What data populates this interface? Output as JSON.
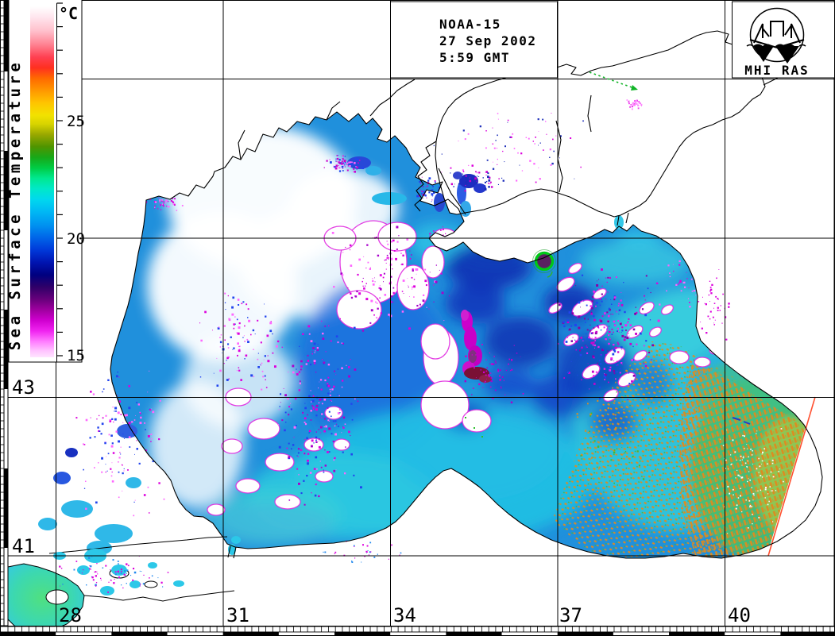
{
  "header": {
    "satellite": "NOAA-15",
    "date": "27 Sep 2002",
    "time": "5:59 GMT"
  },
  "logo": {
    "caption": "MHI RAS"
  },
  "legend": {
    "title": "Sea Surface Temperature",
    "unit": "°C",
    "ticks": [
      {
        "label": "25"
      },
      {
        "label": "20"
      },
      {
        "label": "15"
      }
    ],
    "gradient_stops": [
      [
        "0",
        "#ffffff"
      ],
      [
        "0.03",
        "#ffe6ee"
      ],
      [
        "0.07",
        "#ffc0cc"
      ],
      [
        "0.11",
        "#ff8090"
      ],
      [
        "0.145",
        "#ff4052"
      ],
      [
        "0.175",
        "#ff3020"
      ],
      [
        "0.205",
        "#ff6a00"
      ],
      [
        "0.24",
        "#ff9800"
      ],
      [
        "0.275",
        "#ffc400"
      ],
      [
        "0.31",
        "#f2e200"
      ],
      [
        "0.335",
        "#d8d400"
      ],
      [
        "0.365",
        "#9aa800"
      ],
      [
        "0.40",
        "#4f9400"
      ],
      [
        "0.43",
        "#18a818"
      ],
      [
        "0.46",
        "#00cc44"
      ],
      [
        "0.49",
        "#00e890"
      ],
      [
        "0.52",
        "#00e8c8"
      ],
      [
        "0.55",
        "#00d8ee"
      ],
      [
        "0.585",
        "#00b8f4"
      ],
      [
        "0.625",
        "#0090f0"
      ],
      [
        "0.66",
        "#0064e8"
      ],
      [
        "0.695",
        "#0038d8"
      ],
      [
        "0.73",
        "#0014b0"
      ],
      [
        "0.765",
        "#000080"
      ],
      [
        "0.80",
        "#300068"
      ],
      [
        "0.835",
        "#68007c"
      ],
      [
        "0.865",
        "#a000a0"
      ],
      [
        "0.895",
        "#d000d0"
      ],
      [
        "0.925",
        "#f024f0"
      ],
      [
        "0.955",
        "#ff7cff"
      ],
      [
        "0.98",
        "#ffc0ff"
      ],
      [
        "1",
        "#ffe4ff"
      ]
    ]
  },
  "axes": {
    "longitude": [
      {
        "label": "28"
      },
      {
        "label": "31"
      },
      {
        "label": "34"
      },
      {
        "label": "37"
      },
      {
        "label": "40"
      }
    ],
    "latitude": [
      {
        "label": "43"
      },
      {
        "label": "41"
      }
    ]
  },
  "palette": {
    "sea_base": "#2090dc",
    "sea_cyan": "#30c8da",
    "sea_navy": "#0a2cb0",
    "cold_magenta": "#cc00cc",
    "hatch_orange": "#e08a1e",
    "hatch_green_base": "#46be6e",
    "swath_edge_red": "#ff5030",
    "arrow_green": "#10b426"
  }
}
